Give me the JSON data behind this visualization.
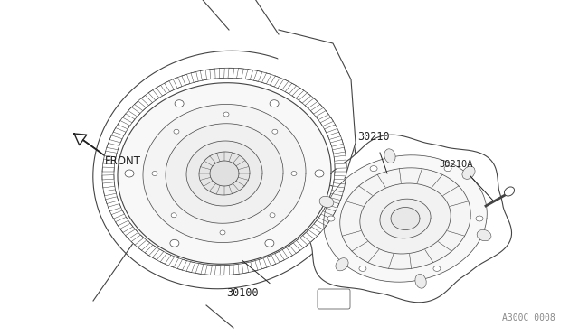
{
  "background_color": "#ffffff",
  "image_code": "A300C 0008",
  "line_color": "#444444",
  "text_color": "#222222",
  "font_size": 8.5,
  "label_font_size": 7.5,
  "fig_width": 6.4,
  "fig_height": 3.72,
  "dpi": 100
}
